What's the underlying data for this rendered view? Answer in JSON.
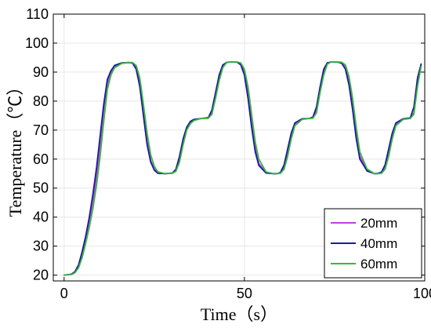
{
  "chart_data": {
    "type": "line",
    "xlabel": "Time（s）",
    "ylabel": "Temperature（℃）",
    "xlim": [
      -3,
      100
    ],
    "ylim": [
      18,
      110
    ],
    "xticks": [
      0,
      50,
      100
    ],
    "yticks": [
      20,
      30,
      40,
      50,
      60,
      70,
      80,
      90,
      100,
      110
    ],
    "grid": true,
    "legend_position": "bottom-right",
    "series": [
      {
        "name": "20mm",
        "color": "#c040e0",
        "x": [
          0,
          2,
          3,
          4,
          5,
          6,
          7,
          8,
          9,
          10,
          11,
          12,
          13,
          14,
          16,
          18,
          19,
          20,
          21,
          22,
          23,
          24,
          25,
          26,
          28,
          30,
          31,
          32,
          33,
          34,
          35,
          36,
          38,
          40,
          41,
          42,
          43,
          44,
          45,
          46,
          47,
          48,
          49,
          50,
          51,
          52,
          53,
          54,
          56,
          58,
          59,
          60,
          61,
          62,
          63,
          64,
          66,
          68,
          69,
          70,
          71,
          72,
          73,
          74,
          75,
          76,
          77,
          78,
          79,
          80,
          81,
          82,
          84,
          86,
          87,
          88,
          89,
          90,
          91,
          92,
          94,
          96,
          97,
          98,
          99
        ],
        "values": [
          20,
          20.3,
          21,
          23,
          27,
          32,
          38,
          45,
          54,
          65,
          77,
          86,
          90,
          92,
          93.1,
          93.3,
          93.2,
          91.5,
          86,
          76,
          66,
          59.5,
          56.5,
          55.2,
          55,
          55.1,
          56,
          60,
          66,
          70.5,
          72.5,
          73.5,
          74,
          74.1,
          76,
          82,
          88,
          92,
          93.3,
          93.5,
          93.5,
          93.5,
          93,
          90,
          83,
          73,
          64,
          58.5,
          55.3,
          55,
          55,
          55.2,
          57,
          62,
          68,
          72,
          73.8,
          74,
          74.2,
          77,
          84,
          90,
          93,
          93.5,
          93.5,
          93.5,
          93.3,
          92,
          87,
          79,
          69,
          61,
          56.2,
          55,
          55,
          55.2,
          57,
          62,
          68,
          72,
          73.8,
          74,
          76,
          86,
          92.3
        ]
      },
      {
        "name": "40mm",
        "color": "#1a1aa8",
        "x": [
          0,
          2,
          3,
          4,
          5,
          6,
          7,
          8,
          9,
          10,
          11,
          12,
          13,
          14,
          16,
          18,
          19,
          20,
          21,
          22,
          23,
          24,
          25,
          26,
          28,
          30,
          31,
          32,
          33,
          34,
          35,
          36,
          38,
          40,
          41,
          42,
          43,
          44,
          45,
          46,
          47,
          48,
          49,
          50,
          51,
          52,
          53,
          54,
          56,
          58,
          59,
          60,
          61,
          62,
          63,
          64,
          66,
          68,
          69,
          70,
          71,
          72,
          73,
          74,
          75,
          76,
          77,
          78,
          79,
          80,
          81,
          82,
          84,
          86,
          87,
          88,
          89,
          90,
          91,
          92,
          94,
          96,
          97,
          98,
          99
        ],
        "values": [
          20,
          20.3,
          21.2,
          23.5,
          28,
          33.5,
          40,
          48,
          57,
          68,
          79,
          87.5,
          90.5,
          92.3,
          93.2,
          93.3,
          93.1,
          91,
          85,
          75,
          65,
          59,
          56.2,
          55.1,
          55,
          55.2,
          56.5,
          61,
          67,
          71,
          73,
          73.7,
          74,
          74.3,
          77,
          83,
          89,
          92.5,
          93.3,
          93.5,
          93.5,
          93.4,
          92.5,
          89,
          81,
          71,
          62.5,
          57.8,
          55.2,
          55,
          55,
          55.4,
          58,
          63.5,
          69,
          72.5,
          73.9,
          74,
          74.5,
          78,
          85,
          91,
          93.2,
          93.5,
          93.5,
          93.4,
          93,
          91,
          85.5,
          77,
          67,
          60,
          55.9,
          55,
          55.1,
          55.5,
          58,
          63.5,
          69,
          72.5,
          73.9,
          74.2,
          78,
          88,
          92.8
        ]
      },
      {
        "name": "60mm",
        "color": "#3cb83c",
        "x": [
          0,
          2,
          3,
          4,
          5,
          6,
          7,
          8,
          9,
          10,
          11,
          12,
          13,
          14,
          16,
          18,
          19,
          20,
          21,
          22,
          23,
          24,
          25,
          26,
          28,
          30,
          31,
          32,
          33,
          34,
          35,
          36,
          38,
          40,
          41,
          42,
          43,
          44,
          45,
          46,
          47,
          48,
          49,
          50,
          51,
          52,
          53,
          54,
          56,
          58,
          59,
          60,
          61,
          62,
          63,
          64,
          66,
          68,
          69,
          70,
          71,
          72,
          73,
          74,
          75,
          76,
          77,
          78,
          79,
          80,
          81,
          82,
          84,
          86,
          87,
          88,
          89,
          90,
          91,
          92,
          94,
          96,
          97,
          98,
          99
        ],
        "values": [
          20,
          20.2,
          20.8,
          22.5,
          26,
          31,
          36.5,
          43,
          51,
          61,
          73,
          84,
          89,
          91.5,
          93,
          93.3,
          93.3,
          92.3,
          88,
          79,
          69,
          61.5,
          57.5,
          55.6,
          55,
          55.1,
          55.8,
          59,
          65,
          70,
          72.2,
          73.3,
          74,
          74.1,
          75.5,
          81,
          87,
          91.5,
          93.2,
          93.5,
          93.5,
          93.5,
          93.2,
          91,
          85,
          75.5,
          66,
          60,
          55.6,
          55,
          55,
          55.1,
          56.5,
          61,
          67,
          71.5,
          73.7,
          74,
          74.1,
          76,
          83,
          89,
          92.7,
          93.5,
          93.5,
          93.5,
          93.4,
          92.5,
          88.5,
          81,
          71,
          62.5,
          56.6,
          55,
          55,
          55.1,
          56.5,
          61,
          67,
          71.5,
          73.7,
          74,
          75.5,
          85,
          92
        ]
      }
    ]
  }
}
